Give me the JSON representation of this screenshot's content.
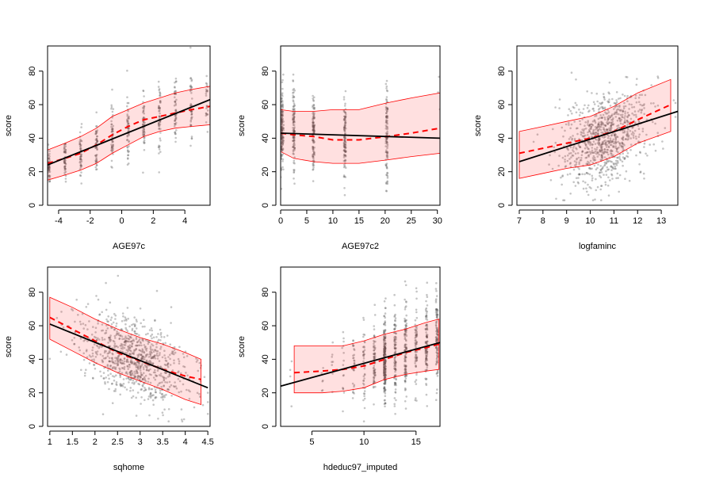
{
  "chart_data": [
    {
      "type": "scatter",
      "xlabel": "AGE97c",
      "ylabel": "score",
      "xlim": [
        -4.7,
        5.6
      ],
      "ylim": [
        0,
        95
      ],
      "xticks": [
        -4,
        -2,
        0,
        2,
        4
      ],
      "yticks": [
        0,
        20,
        40,
        60,
        80
      ],
      "scatter_model": "clusters",
      "clusters": [
        {
          "x": -4.6,
          "mean": 24,
          "sd": 6,
          "n": 45
        },
        {
          "x": -3.6,
          "mean": 27,
          "sd": 6.5,
          "n": 50
        },
        {
          "x": -2.6,
          "mean": 30,
          "sd": 7,
          "n": 50
        },
        {
          "x": -1.6,
          "mean": 35,
          "sd": 8,
          "n": 55
        },
        {
          "x": -0.6,
          "mean": 42,
          "sd": 9,
          "n": 55
        },
        {
          "x": 0.4,
          "mean": 46,
          "sd": 9,
          "n": 55
        },
        {
          "x": 1.4,
          "mean": 50,
          "sd": 9,
          "n": 55
        },
        {
          "x": 2.4,
          "mean": 53,
          "sd": 10,
          "n": 55
        },
        {
          "x": 3.4,
          "mean": 56,
          "sd": 10,
          "n": 50
        },
        {
          "x": 4.4,
          "mean": 58,
          "sd": 11,
          "n": 45
        },
        {
          "x": 5.4,
          "mean": 60,
          "sd": 11,
          "n": 25
        }
      ],
      "fit_line": [
        [
          -4.7,
          24
        ],
        [
          5.6,
          63
        ]
      ],
      "smooth": {
        "x": [
          -4.7,
          -3.6,
          -2.6,
          -1.6,
          -0.6,
          0.4,
          1.4,
          2.4,
          3.4,
          4.4,
          5.6
        ],
        "y": [
          25,
          28,
          31,
          36,
          42,
          47,
          51,
          53,
          55,
          57,
          59
        ],
        "lower": [
          15,
          18,
          21,
          25,
          31,
          36,
          41,
          44,
          46,
          47,
          48
        ],
        "upper": [
          33,
          37,
          41,
          46,
          53,
          57,
          61,
          64,
          67,
          69,
          71
        ]
      }
    },
    {
      "type": "scatter",
      "xlabel": "AGE97c2",
      "ylabel": "score",
      "xlim": [
        0,
        30.5
      ],
      "ylim": [
        0,
        95
      ],
      "xticks": [
        0,
        5,
        10,
        15,
        20,
        25,
        30
      ],
      "yticks": [
        0,
        20,
        40,
        60,
        80
      ],
      "scatter_model": "clusters",
      "clusters": [
        {
          "x": 0.2,
          "mean": 44,
          "sd": 12,
          "n": 110
        },
        {
          "x": 0.4,
          "mean": 46,
          "sd": 12,
          "n": 50
        },
        {
          "x": 2.5,
          "mean": 43,
          "sd": 13,
          "n": 110
        },
        {
          "x": 6.3,
          "mean": 42,
          "sd": 13,
          "n": 110
        },
        {
          "x": 12.3,
          "mean": 40,
          "sd": 12,
          "n": 110
        },
        {
          "x": 20.3,
          "mean": 42,
          "sd": 15,
          "n": 110
        },
        {
          "x": 30.3,
          "mean": 70,
          "sd": 10,
          "n": 3
        }
      ],
      "fit_line": [
        [
          0,
          43
        ],
        [
          30.5,
          40
        ]
      ],
      "smooth": {
        "x": [
          0,
          2.5,
          6.3,
          10,
          12.3,
          15,
          20.3,
          25,
          30.5
        ],
        "y": [
          43,
          42,
          41,
          39,
          39,
          39,
          41,
          43,
          46
        ],
        "lower": [
          32,
          28,
          26,
          25,
          25,
          25,
          27,
          29,
          31
        ],
        "upper": [
          57,
          56,
          56,
          57,
          57,
          57,
          61,
          64,
          67
        ]
      }
    },
    {
      "type": "scatter",
      "xlabel": "logfaminc",
      "ylabel": "score",
      "xlim": [
        6.9,
        13.7
      ],
      "ylim": [
        0,
        95
      ],
      "xticks": [
        7,
        8,
        9,
        10,
        11,
        12,
        13
      ],
      "yticks": [
        0,
        20,
        40,
        60,
        80
      ],
      "scatter_model": "cloud",
      "cloud": {
        "x_mean": 10.6,
        "x_sd": 0.9,
        "x_min": 7,
        "x_max": 13.6,
        "intercept": -9,
        "slope": 4.6,
        "resid_sd": 13,
        "n": 900
      },
      "fit_line": [
        [
          7,
          26
        ],
        [
          13.7,
          56
        ]
      ],
      "smooth": {
        "x": [
          7,
          8,
          9,
          10,
          11,
          12,
          13.4
        ],
        "y": [
          31,
          34,
          37,
          40,
          44,
          51,
          60
        ],
        "lower": [
          16,
          19,
          22,
          24,
          29,
          37,
          44
        ],
        "upper": [
          44,
          47,
          50,
          53,
          59,
          67,
          75
        ]
      }
    },
    {
      "type": "scatter",
      "xlabel": "sqhome",
      "ylabel": "score",
      "xlim": [
        0.95,
        4.55
      ],
      "ylim": [
        0,
        95
      ],
      "xticks": [
        1.0,
        1.5,
        2.0,
        2.5,
        3.0,
        3.5,
        4.0,
        4.5
      ],
      "yticks": [
        0,
        20,
        40,
        60,
        80
      ],
      "scatter_model": "cloud",
      "cloud": {
        "x_mean": 2.85,
        "x_sd": 0.6,
        "x_min": 1.0,
        "x_max": 4.5,
        "intercept": 72,
        "slope": -11,
        "resid_sd": 12,
        "n": 900
      },
      "fit_line": [
        [
          1.0,
          61
        ],
        [
          4.5,
          23
        ]
      ],
      "smooth": {
        "x": [
          1.0,
          1.5,
          2.0,
          2.5,
          3.0,
          3.5,
          4.0,
          4.35
        ],
        "y": [
          65,
          58,
          51,
          44,
          39,
          34,
          30,
          28
        ],
        "lower": [
          52,
          45,
          38,
          32,
          27,
          22,
          16,
          13
        ],
        "upper": [
          77,
          71,
          64,
          58,
          53,
          49,
          44,
          40
        ]
      }
    },
    {
      "type": "scatter",
      "xlabel": "hdeduc97_imputed",
      "ylabel": "score",
      "xlim": [
        2,
        17.3
      ],
      "ylim": [
        0,
        95
      ],
      "xticks": [
        5,
        10,
        15
      ],
      "yticks": [
        0,
        20,
        40,
        60,
        80
      ],
      "scatter_model": "clusters",
      "clusters": [
        {
          "x": 3,
          "mean": 32,
          "sd": 10,
          "n": 4
        },
        {
          "x": 6,
          "mean": 34,
          "sd": 10,
          "n": 6
        },
        {
          "x": 7,
          "mean": 35,
          "sd": 10,
          "n": 8
        },
        {
          "x": 8,
          "mean": 35,
          "sd": 11,
          "n": 15
        },
        {
          "x": 9,
          "mean": 36,
          "sd": 11,
          "n": 30
        },
        {
          "x": 10,
          "mean": 37,
          "sd": 12,
          "n": 45
        },
        {
          "x": 11,
          "mean": 39,
          "sd": 12,
          "n": 70
        },
        {
          "x": 12,
          "mean": 41,
          "sd": 13,
          "n": 220
        },
        {
          "x": 13,
          "mean": 43,
          "sd": 13,
          "n": 100
        },
        {
          "x": 14,
          "mean": 45,
          "sd": 13,
          "n": 110
        },
        {
          "x": 15,
          "mean": 47,
          "sd": 13,
          "n": 70
        },
        {
          "x": 16,
          "mean": 49,
          "sd": 13,
          "n": 100
        },
        {
          "x": 17,
          "mean": 52,
          "sd": 12,
          "n": 100
        }
      ],
      "fit_line": [
        [
          2,
          24
        ],
        [
          17.3,
          50
        ]
      ],
      "smooth": {
        "x": [
          3.3,
          6,
          8,
          10,
          12,
          14,
          16,
          17.2
        ],
        "y": [
          32,
          33,
          34,
          36,
          40,
          44,
          47,
          49
        ],
        "lower": [
          20,
          20,
          21,
          23,
          28,
          31,
          33,
          34
        ],
        "upper": [
          48,
          48,
          48,
          51,
          55,
          58,
          62,
          64
        ]
      }
    }
  ]
}
